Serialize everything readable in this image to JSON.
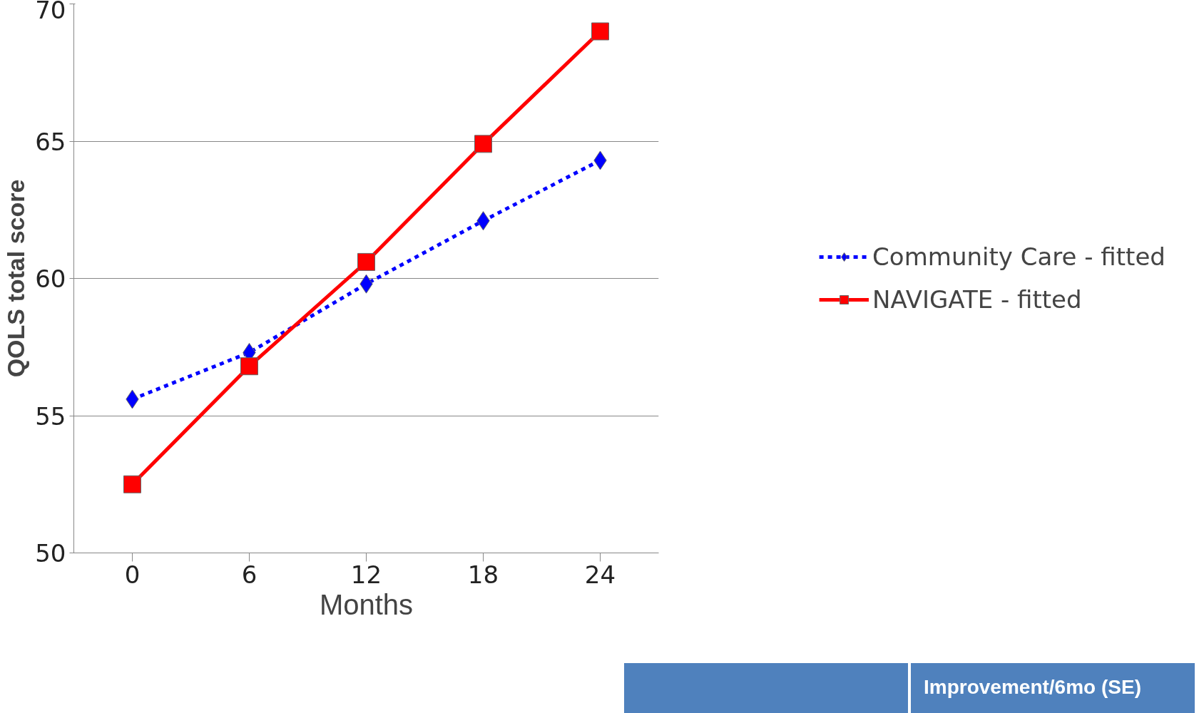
{
  "chart_data": {
    "type": "line",
    "xlabel": "Months",
    "ylabel": "QOLS total score",
    "categories": [
      "0",
      "6",
      "12",
      "18",
      "24"
    ],
    "series": [
      {
        "name": "Community Care - fitted",
        "color": "#0000ff",
        "values": [
          55.6,
          57.3,
          59.8,
          62.1,
          64.3
        ],
        "marker": "diamond",
        "line_style": "dashed"
      },
      {
        "name": "NAVIGATE - fitted",
        "color": "#ff0000",
        "values": [
          52.5,
          56.8,
          60.6,
          64.9,
          69.0
        ],
        "marker": "square",
        "line_style": "solid"
      }
    ],
    "ylim": [
      50,
      70
    ],
    "yticks": [
      50,
      55,
      60,
      65,
      70
    ],
    "grid": "y",
    "legend": "right",
    "annotations": [
      "Improvement/6mo (SE)"
    ]
  }
}
